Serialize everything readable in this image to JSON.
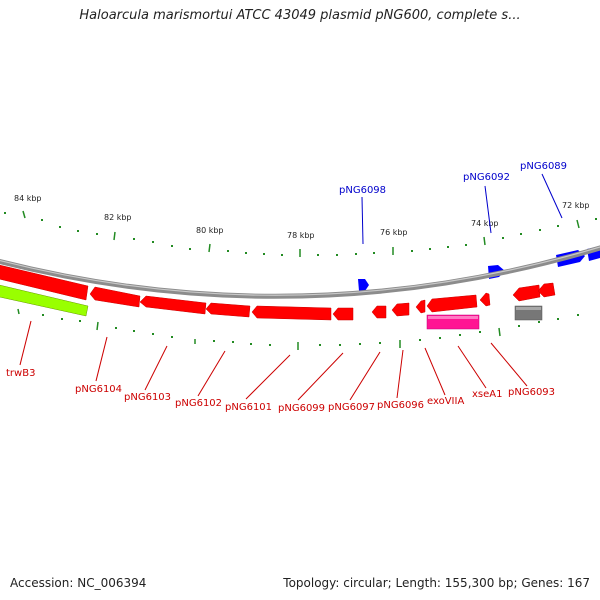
{
  "title": "Haloarcula marismortui ATCC 43049 plasmid pNG600, complete s...",
  "accession_label": "Accession: NC_006394",
  "summary_label": "Topology: circular; Length: 155,300 bp; Genes: 167",
  "kbp_labels": [
    "84 kbp",
    "82 kbp",
    "80 kbp",
    "78 kbp",
    "76 kbp",
    "74 kbp",
    "72 kbp"
  ],
  "upper_gene_labels": [
    "pNG6098",
    "pNG6092",
    "pNG6089"
  ],
  "lower_gene_labels": [
    "trwB3",
    "pNG6104",
    "pNG6103",
    "pNG6102",
    "pNG6101",
    "pNG6099",
    "pNG6097",
    "pNG6096",
    "exoVIIA",
    "xseA1",
    "pNG6093"
  ],
  "colors": {
    "forward_gene": "#0000ff",
    "reverse_gene": "#ff0000",
    "other_gene_green": "#99ff00",
    "other_gene_pink": "#ff1493",
    "other_gene_gray": "#777777",
    "backbone": "#888888",
    "tick": "#228b22",
    "upper_label": "#0000cc",
    "lower_label": "#cc0000"
  }
}
